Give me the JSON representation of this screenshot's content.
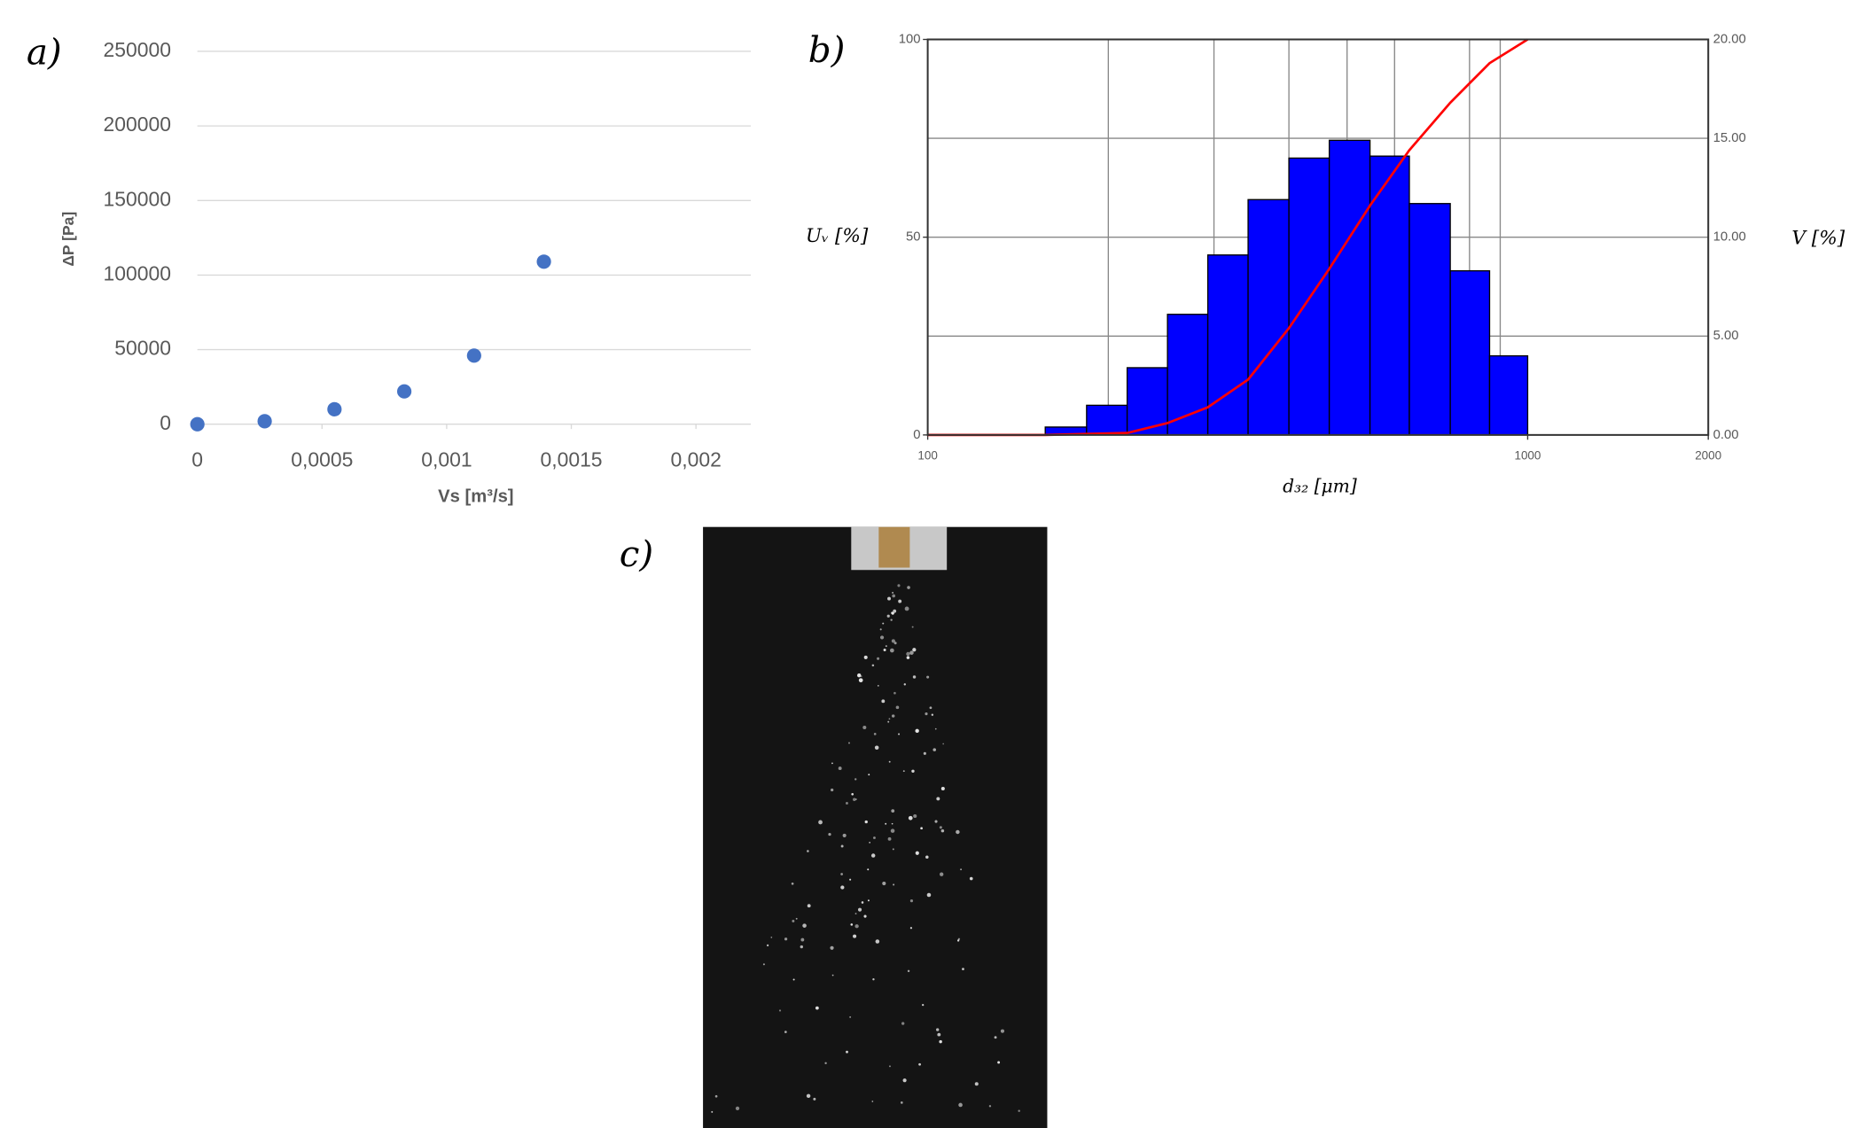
{
  "chart_data": [
    {
      "type": "scatter",
      "panel_label": "a)",
      "y_label": "ΔP [Pa]",
      "x_label": "Vs [m³/s]",
      "x": [
        0,
        0.00027,
        0.00055,
        0.00083,
        0.00111,
        0.00139
      ],
      "values": [
        0,
        2000,
        10000,
        22000,
        46000,
        109000
      ],
      "color": "#4472c4",
      "xlim": [
        0,
        0.00222
      ],
      "xticks": [
        0,
        {
          "value": 0.0005,
          "label": "0,0005"
        },
        {
          "value": 0.001,
          "label": "0,001"
        },
        {
          "value": 0.0015,
          "label": "0,0015"
        },
        {
          "value": 0.002,
          "label": "0,002"
        }
      ],
      "ylim": [
        0,
        250000
      ],
      "yticks": [
        0,
        50000,
        100000,
        150000,
        200000,
        250000
      ],
      "grid": true
    },
    {
      "type": "histogram",
      "panel_label": "b)",
      "y_label": "Uᵥ [%]",
      "y2_label": "V [%]",
      "x_label": "d₃₂ [μm]",
      "xscale": "log",
      "bins": [
        157,
        184,
        215,
        251,
        293,
        342,
        400,
        467,
        546,
        635,
        743,
        864,
        1000
      ],
      "values": [
        0.4,
        1.5,
        3.4,
        6.1,
        9.1,
        11.9,
        14.0,
        14.9,
        14.1,
        11.7,
        8.3,
        4.0
      ],
      "color": "#0000ff",
      "axis": "y2",
      "line": {
        "x": [
          100,
          157,
          215,
          251,
          293,
          342,
          400,
          467,
          546,
          635,
          743,
          864,
          1000
        ],
        "values": [
          0,
          0,
          0.5,
          3,
          7,
          14,
          27,
          42,
          58,
          72,
          84,
          94,
          100
        ],
        "color": "#ff0000"
      },
      "xlim": [
        100,
        2000
      ],
      "xticks": [
        100,
        1000,
        2000
      ],
      "xgrid": [
        200,
        300,
        400,
        500,
        600,
        800,
        900
      ],
      "ylim": [
        0,
        100
      ],
      "yticks": [
        0,
        50,
        100
      ],
      "y2lim": [
        0,
        20
      ],
      "y2ticks": [
        {
          "value": 0,
          "label": "0.00"
        },
        {
          "value": 5,
          "label": "5.00"
        },
        {
          "value": 10,
          "label": "10.00"
        },
        {
          "value": 15,
          "label": "15.00"
        },
        {
          "value": 20,
          "label": "20.00"
        }
      ],
      "grid": true
    }
  ],
  "photo": {
    "panel_label": "c)"
  }
}
